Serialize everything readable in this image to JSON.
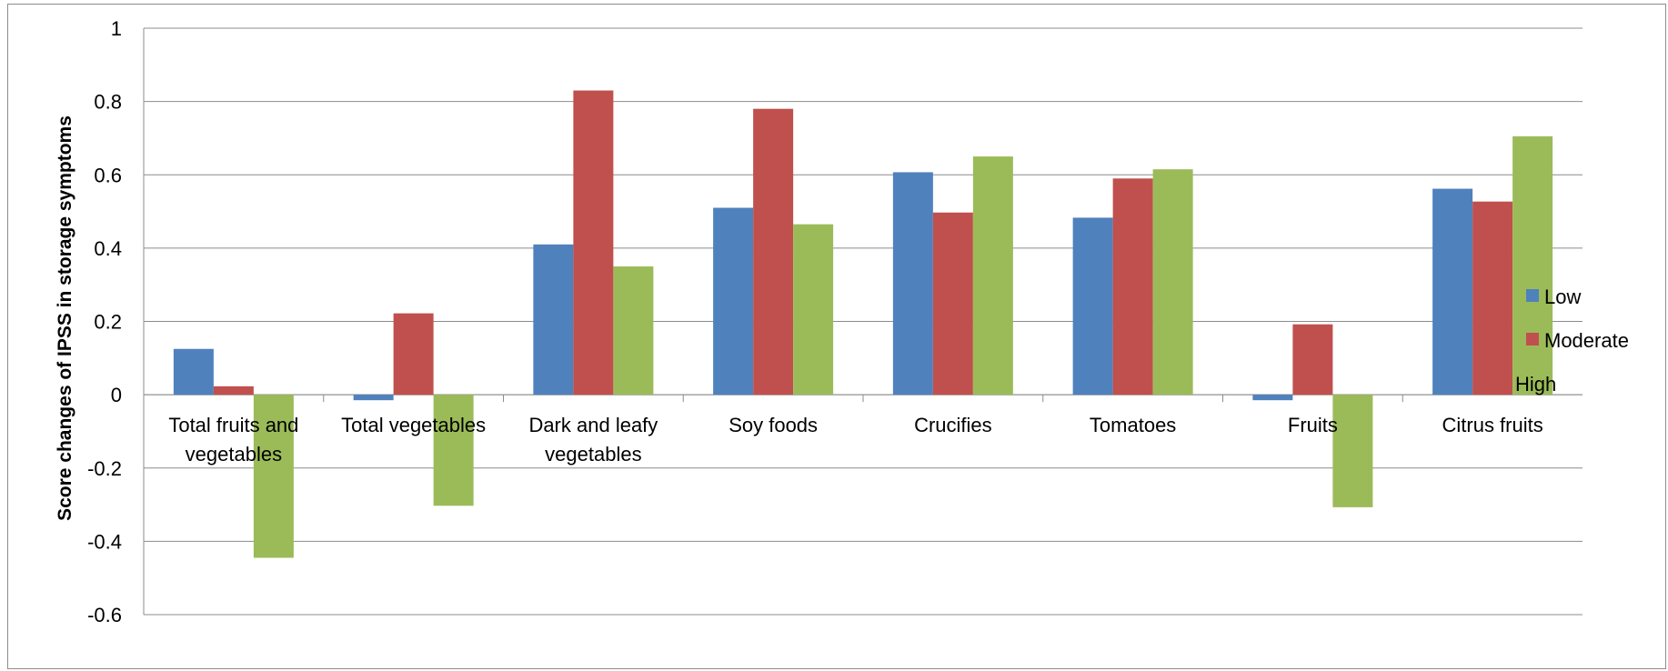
{
  "chart_data": {
    "type": "bar",
    "title": "",
    "xlabel": "",
    "ylabel": "Score changes of IPSS in storage symptoms",
    "ylim": [
      -0.6,
      1
    ],
    "yticks": [
      "1",
      "0.8",
      "0.6",
      "0.4",
      "0.2",
      "0",
      "-0.2",
      "-0.4",
      "-0.6"
    ],
    "ytick_values": [
      1,
      0.8,
      0.6,
      0.4,
      0.2,
      0,
      -0.2,
      -0.4,
      -0.6
    ],
    "grid": true,
    "legend_position": "right",
    "categories": [
      [
        "Total fruits and",
        "vegetables"
      ],
      [
        "Total vegetables"
      ],
      [
        "Dark and leafy",
        "vegetables"
      ],
      [
        "Soy foods"
      ],
      [
        "Crucifies"
      ],
      [
        "Tomatoes"
      ],
      [
        "Fruits"
      ],
      [
        "Citrus fruits"
      ]
    ],
    "series": [
      {
        "name": "Low",
        "color": "#4f81bd",
        "values": [
          0.125,
          -0.015,
          0.41,
          0.51,
          0.607,
          0.483,
          -0.015,
          0.562
        ]
      },
      {
        "name": "Moderate",
        "color": "#c0504d",
        "values": [
          0.023,
          0.222,
          0.83,
          0.78,
          0.497,
          0.59,
          0.192,
          0.527
        ]
      },
      {
        "name": "High",
        "color": "#9bbb59",
        "values": [
          -0.445,
          -0.303,
          0.35,
          0.465,
          0.65,
          0.615,
          -0.307,
          0.705
        ]
      }
    ]
  }
}
